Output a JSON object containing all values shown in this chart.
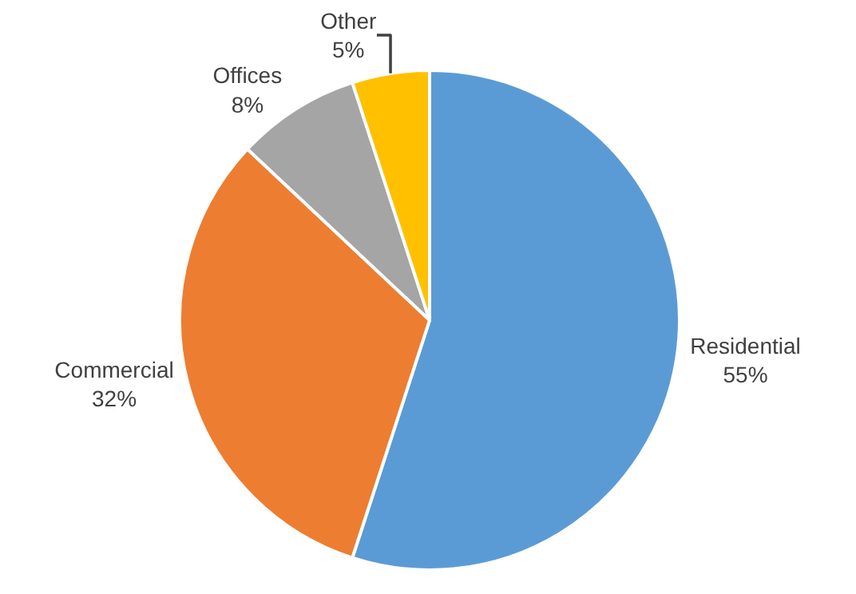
{
  "chart_data": {
    "type": "pie",
    "categories": [
      "Residential",
      "Commercial",
      "Offices",
      "Other"
    ],
    "values": [
      55,
      32,
      8,
      5
    ],
    "value_labels": [
      "55%",
      "32%",
      "8%",
      "5%"
    ],
    "colors": [
      "#5b9bd5",
      "#ed7d31",
      "#a5a5a5",
      "#ffc000"
    ],
    "legend": false
  }
}
